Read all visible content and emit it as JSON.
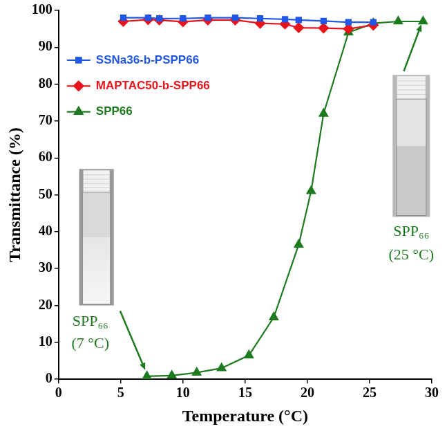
{
  "chart_data": {
    "type": "line",
    "x_label": "Temperature (°C)",
    "y_label": "Transmittance (%)",
    "xlim": [
      0,
      30
    ],
    "xticks": [
      0,
      5,
      10,
      15,
      20,
      25,
      30
    ],
    "ylim": [
      0,
      100
    ],
    "yticks": [
      0,
      10,
      20,
      30,
      40,
      50,
      60,
      70,
      80,
      90,
      100
    ],
    "grid": false,
    "legend": "upper left",
    "series": [
      {
        "name": "SSNa36-b-PSPP66",
        "color": "#2157e6",
        "marker": "square",
        "x": [
          5.2,
          7.2,
          8.1,
          10.0,
          12.0,
          14.2,
          16.2,
          18.2,
          19.3,
          21.3,
          23.3,
          25.3
        ],
        "values": [
          98,
          98,
          97.8,
          97.8,
          98,
          98,
          97.8,
          97.6,
          97.4,
          97.1,
          96.8,
          96.8
        ]
      },
      {
        "name": "MAPTAC50-b-SPP66",
        "color": "#e8141c",
        "marker": "diamond",
        "x": [
          5.2,
          7.2,
          8.1,
          10.0,
          12.0,
          14.2,
          16.2,
          18.2,
          19.3,
          21.3,
          23.3,
          25.3
        ],
        "values": [
          97,
          97.5,
          97.4,
          96.9,
          97.4,
          97.4,
          96.5,
          96.3,
          95.3,
          95.2,
          95,
          96
        ]
      },
      {
        "name": "SPP66",
        "color": "#1e7a1e",
        "marker": "triangle",
        "x": [
          7.1,
          9.1,
          11.1,
          13.1,
          15.3,
          17.3,
          19.3,
          20.3,
          21.3,
          23.3,
          25.3,
          27.3,
          29.3
        ],
        "values": [
          0.8,
          1.0,
          1.8,
          3.0,
          6.5,
          16.8,
          36.5,
          51,
          72,
          94,
          96.5,
          97,
          97
        ]
      }
    ],
    "annotations": [
      {
        "text": "SPP₆₆ (7 °C)",
        "color": "#1e7a1e"
      },
      {
        "text": "SPP₆₆ (25 °C)",
        "color": "#1e7a1e"
      }
    ]
  }
}
